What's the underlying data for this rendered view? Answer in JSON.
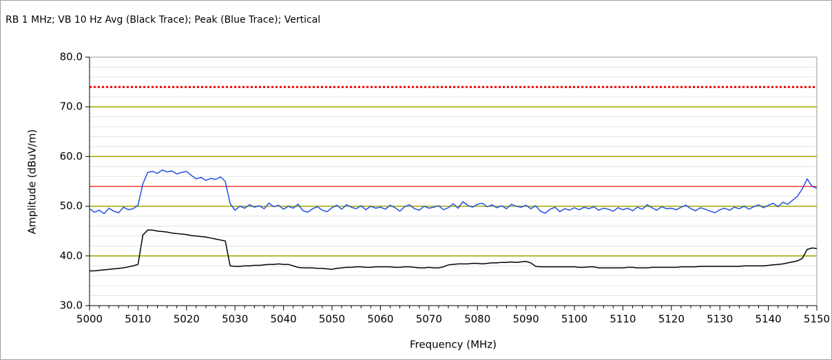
{
  "chart_data": {
    "type": "line",
    "title": "RB 1 MHz; VB 10 Hz Avg (Black Trace); Peak (Blue Trace); Vertical",
    "xlabel": "Frequency (MHz)",
    "ylabel": "Amplitude (dBuV/m)",
    "xlim": [
      5000,
      5150
    ],
    "ylim": [
      30,
      80
    ],
    "xticks": [
      5000,
      5010,
      5020,
      5030,
      5040,
      5050,
      5060,
      5070,
      5080,
      5090,
      5100,
      5110,
      5120,
      5130,
      5140,
      5150
    ],
    "minor_xticks": [
      5002,
      5004,
      5006,
      5008,
      5012,
      5014,
      5016,
      5018,
      5022,
      5024,
      5026,
      5028,
      5032,
      5034,
      5036,
      5038,
      5042,
      5044,
      5046,
      5048,
      5052,
      5054,
      5056,
      5058,
      5062,
      5064,
      5066,
      5068,
      5072,
      5074,
      5076,
      5078,
      5082,
      5084,
      5086,
      5088,
      5092,
      5094,
      5096,
      5098,
      5102,
      5104,
      5106,
      5108,
      5112,
      5114,
      5116,
      5118,
      5122,
      5124,
      5126,
      5128,
      5132,
      5134,
      5136,
      5138,
      5142,
      5144,
      5146,
      5148
    ],
    "yticks": [
      {
        "value": 30,
        "label": "30.0"
      },
      {
        "value": 40,
        "label": "40.0"
      },
      {
        "value": 50,
        "label": "50.0"
      },
      {
        "value": 60,
        "label": "60.0"
      },
      {
        "value": 70,
        "label": "70.0"
      },
      {
        "value": 80,
        "label": "80.0"
      }
    ],
    "minor_ygrid": [
      32,
      34,
      36,
      38,
      42,
      44,
      46,
      48,
      52,
      54,
      56,
      58,
      62,
      64,
      66,
      68,
      72,
      74,
      76,
      78
    ],
    "grid": true,
    "grid_color": "#a3a300",
    "minor_grid_color": "#e2e2e2",
    "limit_lines": [
      {
        "value": 74,
        "color": "#ff0000",
        "style": "dotted"
      },
      {
        "value": 54,
        "color": "#ff3b3b",
        "style": "solid"
      }
    ],
    "x": [
      5000,
      5001,
      5002,
      5003,
      5004,
      5005,
      5006,
      5007,
      5008,
      5009,
      5010,
      5011,
      5012,
      5013,
      5014,
      5015,
      5016,
      5017,
      5018,
      5019,
      5020,
      5021,
      5022,
      5023,
      5024,
      5025,
      5026,
      5027,
      5028,
      5029,
      5030,
      5031,
      5032,
      5033,
      5034,
      5035,
      5036,
      5037,
      5038,
      5039,
      5040,
      5041,
      5042,
      5043,
      5044,
      5045,
      5046,
      5047,
      5048,
      5049,
      5050,
      5051,
      5052,
      5053,
      5054,
      5055,
      5056,
      5057,
      5058,
      5059,
      5060,
      5061,
      5062,
      5063,
      5064,
      5065,
      5066,
      5067,
      5068,
      5069,
      5070,
      5071,
      5072,
      5073,
      5074,
      5075,
      5076,
      5077,
      5078,
      5079,
      5080,
      5081,
      5082,
      5083,
      5084,
      5085,
      5086,
      5087,
      5088,
      5089,
      5090,
      5091,
      5092,
      5093,
      5094,
      5095,
      5096,
      5097,
      5098,
      5099,
      5100,
      5101,
      5102,
      5103,
      5104,
      5105,
      5106,
      5107,
      5108,
      5109,
      5110,
      5111,
      5112,
      5113,
      5114,
      5115,
      5116,
      5117,
      5118,
      5119,
      5120,
      5121,
      5122,
      5123,
      5124,
      5125,
      5126,
      5127,
      5128,
      5129,
      5130,
      5131,
      5132,
      5133,
      5134,
      5135,
      5136,
      5137,
      5138,
      5139,
      5140,
      5141,
      5142,
      5143,
      5144,
      5145,
      5146,
      5147,
      5148,
      5149,
      5150
    ],
    "series": [
      {
        "color": "#1f50e0",
        "values": [
          49.5,
          48.8,
          49.2,
          48.5,
          49.6,
          49.0,
          48.7,
          49.8,
          49.3,
          49.5,
          50.2,
          54.5,
          56.8,
          57.0,
          56.6,
          57.3,
          56.9,
          57.1,
          56.5,
          56.8,
          57.0,
          56.2,
          55.5,
          55.8,
          55.2,
          55.6,
          55.4,
          55.9,
          55.0,
          50.5,
          49.2,
          50.0,
          49.6,
          50.3,
          49.8,
          50.1,
          49.5,
          50.6,
          49.9,
          50.2,
          49.4,
          50.0,
          49.6,
          50.4,
          49.1,
          48.8,
          49.5,
          49.9,
          49.2,
          48.9,
          49.7,
          50.2,
          49.4,
          50.3,
          49.8,
          49.5,
          50.1,
          49.3,
          50.0,
          49.6,
          49.8,
          49.4,
          50.2,
          49.7,
          49.0,
          49.9,
          50.3,
          49.5,
          49.2,
          50.0,
          49.6,
          49.8,
          50.1,
          49.3,
          49.7,
          50.5,
          49.6,
          50.9,
          50.2,
          49.8,
          50.4,
          50.6,
          49.9,
          50.3,
          49.7,
          50.1,
          49.5,
          50.4,
          50.0,
          49.8,
          50.2,
          49.5,
          50.1,
          49.0,
          48.6,
          49.4,
          49.8,
          48.9,
          49.5,
          49.2,
          49.7,
          49.3,
          49.8,
          49.5,
          49.9,
          49.2,
          49.6,
          49.4,
          49.0,
          49.7,
          49.3,
          49.6,
          49.1,
          49.8,
          49.4,
          50.3,
          49.7,
          49.2,
          49.9,
          49.5,
          49.6,
          49.3,
          49.8,
          50.2,
          49.5,
          49.1,
          49.7,
          49.4,
          49.0,
          48.7,
          49.3,
          49.6,
          49.2,
          49.8,
          49.5,
          50.0,
          49.4,
          49.9,
          50.3,
          49.7,
          50.2,
          50.6,
          49.9,
          50.8,
          50.4,
          51.2,
          52.0,
          53.5,
          55.5,
          54.0,
          53.6
        ]
      },
      {
        "color": "#000000",
        "values": [
          37.0,
          37.0,
          37.1,
          37.2,
          37.3,
          37.4,
          37.5,
          37.6,
          37.8,
          38.0,
          38.3,
          44.2,
          45.2,
          45.2,
          45.0,
          44.9,
          44.8,
          44.6,
          44.5,
          44.4,
          44.3,
          44.1,
          44.0,
          43.9,
          43.8,
          43.6,
          43.4,
          43.2,
          43.0,
          38.0,
          37.9,
          37.9,
          38.0,
          38.0,
          38.1,
          38.1,
          38.2,
          38.3,
          38.3,
          38.4,
          38.3,
          38.3,
          38.0,
          37.7,
          37.6,
          37.6,
          37.6,
          37.5,
          37.5,
          37.4,
          37.3,
          37.5,
          37.6,
          37.7,
          37.7,
          37.8,
          37.8,
          37.7,
          37.7,
          37.8,
          37.8,
          37.8,
          37.8,
          37.7,
          37.7,
          37.8,
          37.8,
          37.7,
          37.6,
          37.6,
          37.7,
          37.6,
          37.6,
          37.8,
          38.2,
          38.3,
          38.4,
          38.4,
          38.4,
          38.5,
          38.5,
          38.4,
          38.5,
          38.6,
          38.6,
          38.7,
          38.7,
          38.8,
          38.7,
          38.8,
          38.9,
          38.6,
          37.9,
          37.8,
          37.8,
          37.8,
          37.8,
          37.8,
          37.8,
          37.8,
          37.8,
          37.7,
          37.7,
          37.8,
          37.8,
          37.6,
          37.6,
          37.6,
          37.6,
          37.6,
          37.6,
          37.7,
          37.7,
          37.6,
          37.6,
          37.6,
          37.7,
          37.7,
          37.7,
          37.7,
          37.7,
          37.7,
          37.8,
          37.8,
          37.8,
          37.8,
          37.9,
          37.9,
          37.9,
          37.9,
          37.9,
          37.9,
          37.9,
          37.9,
          37.9,
          38.0,
          38.0,
          38.0,
          38.0,
          38.0,
          38.1,
          38.2,
          38.3,
          38.4,
          38.6,
          38.8,
          39.0,
          39.5,
          41.3,
          41.6,
          41.5
        ]
      }
    ]
  }
}
